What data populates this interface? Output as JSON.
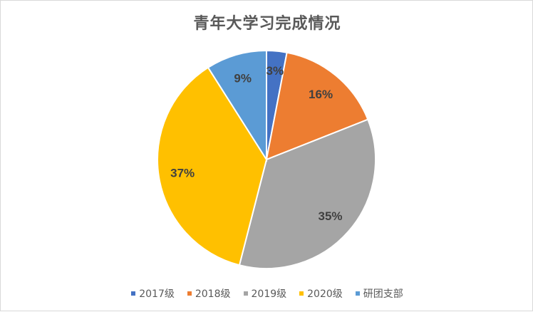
{
  "chart_data": {
    "type": "pie",
    "title": "青年大学习完成情况",
    "categories": [
      "2017级",
      "2018级",
      "2019级",
      "2020级",
      "研团支部"
    ],
    "values": [
      3,
      16,
      35,
      37,
      9
    ],
    "labels": [
      "3%",
      "16%",
      "35%",
      "37%",
      "9%"
    ],
    "colors": [
      "#4472c4",
      "#ed7d31",
      "#a5a5a5",
      "#ffc000",
      "#5b9bd5"
    ],
    "legend_position": "bottom",
    "start_angle_deg": 0,
    "direction": "clockwise"
  }
}
